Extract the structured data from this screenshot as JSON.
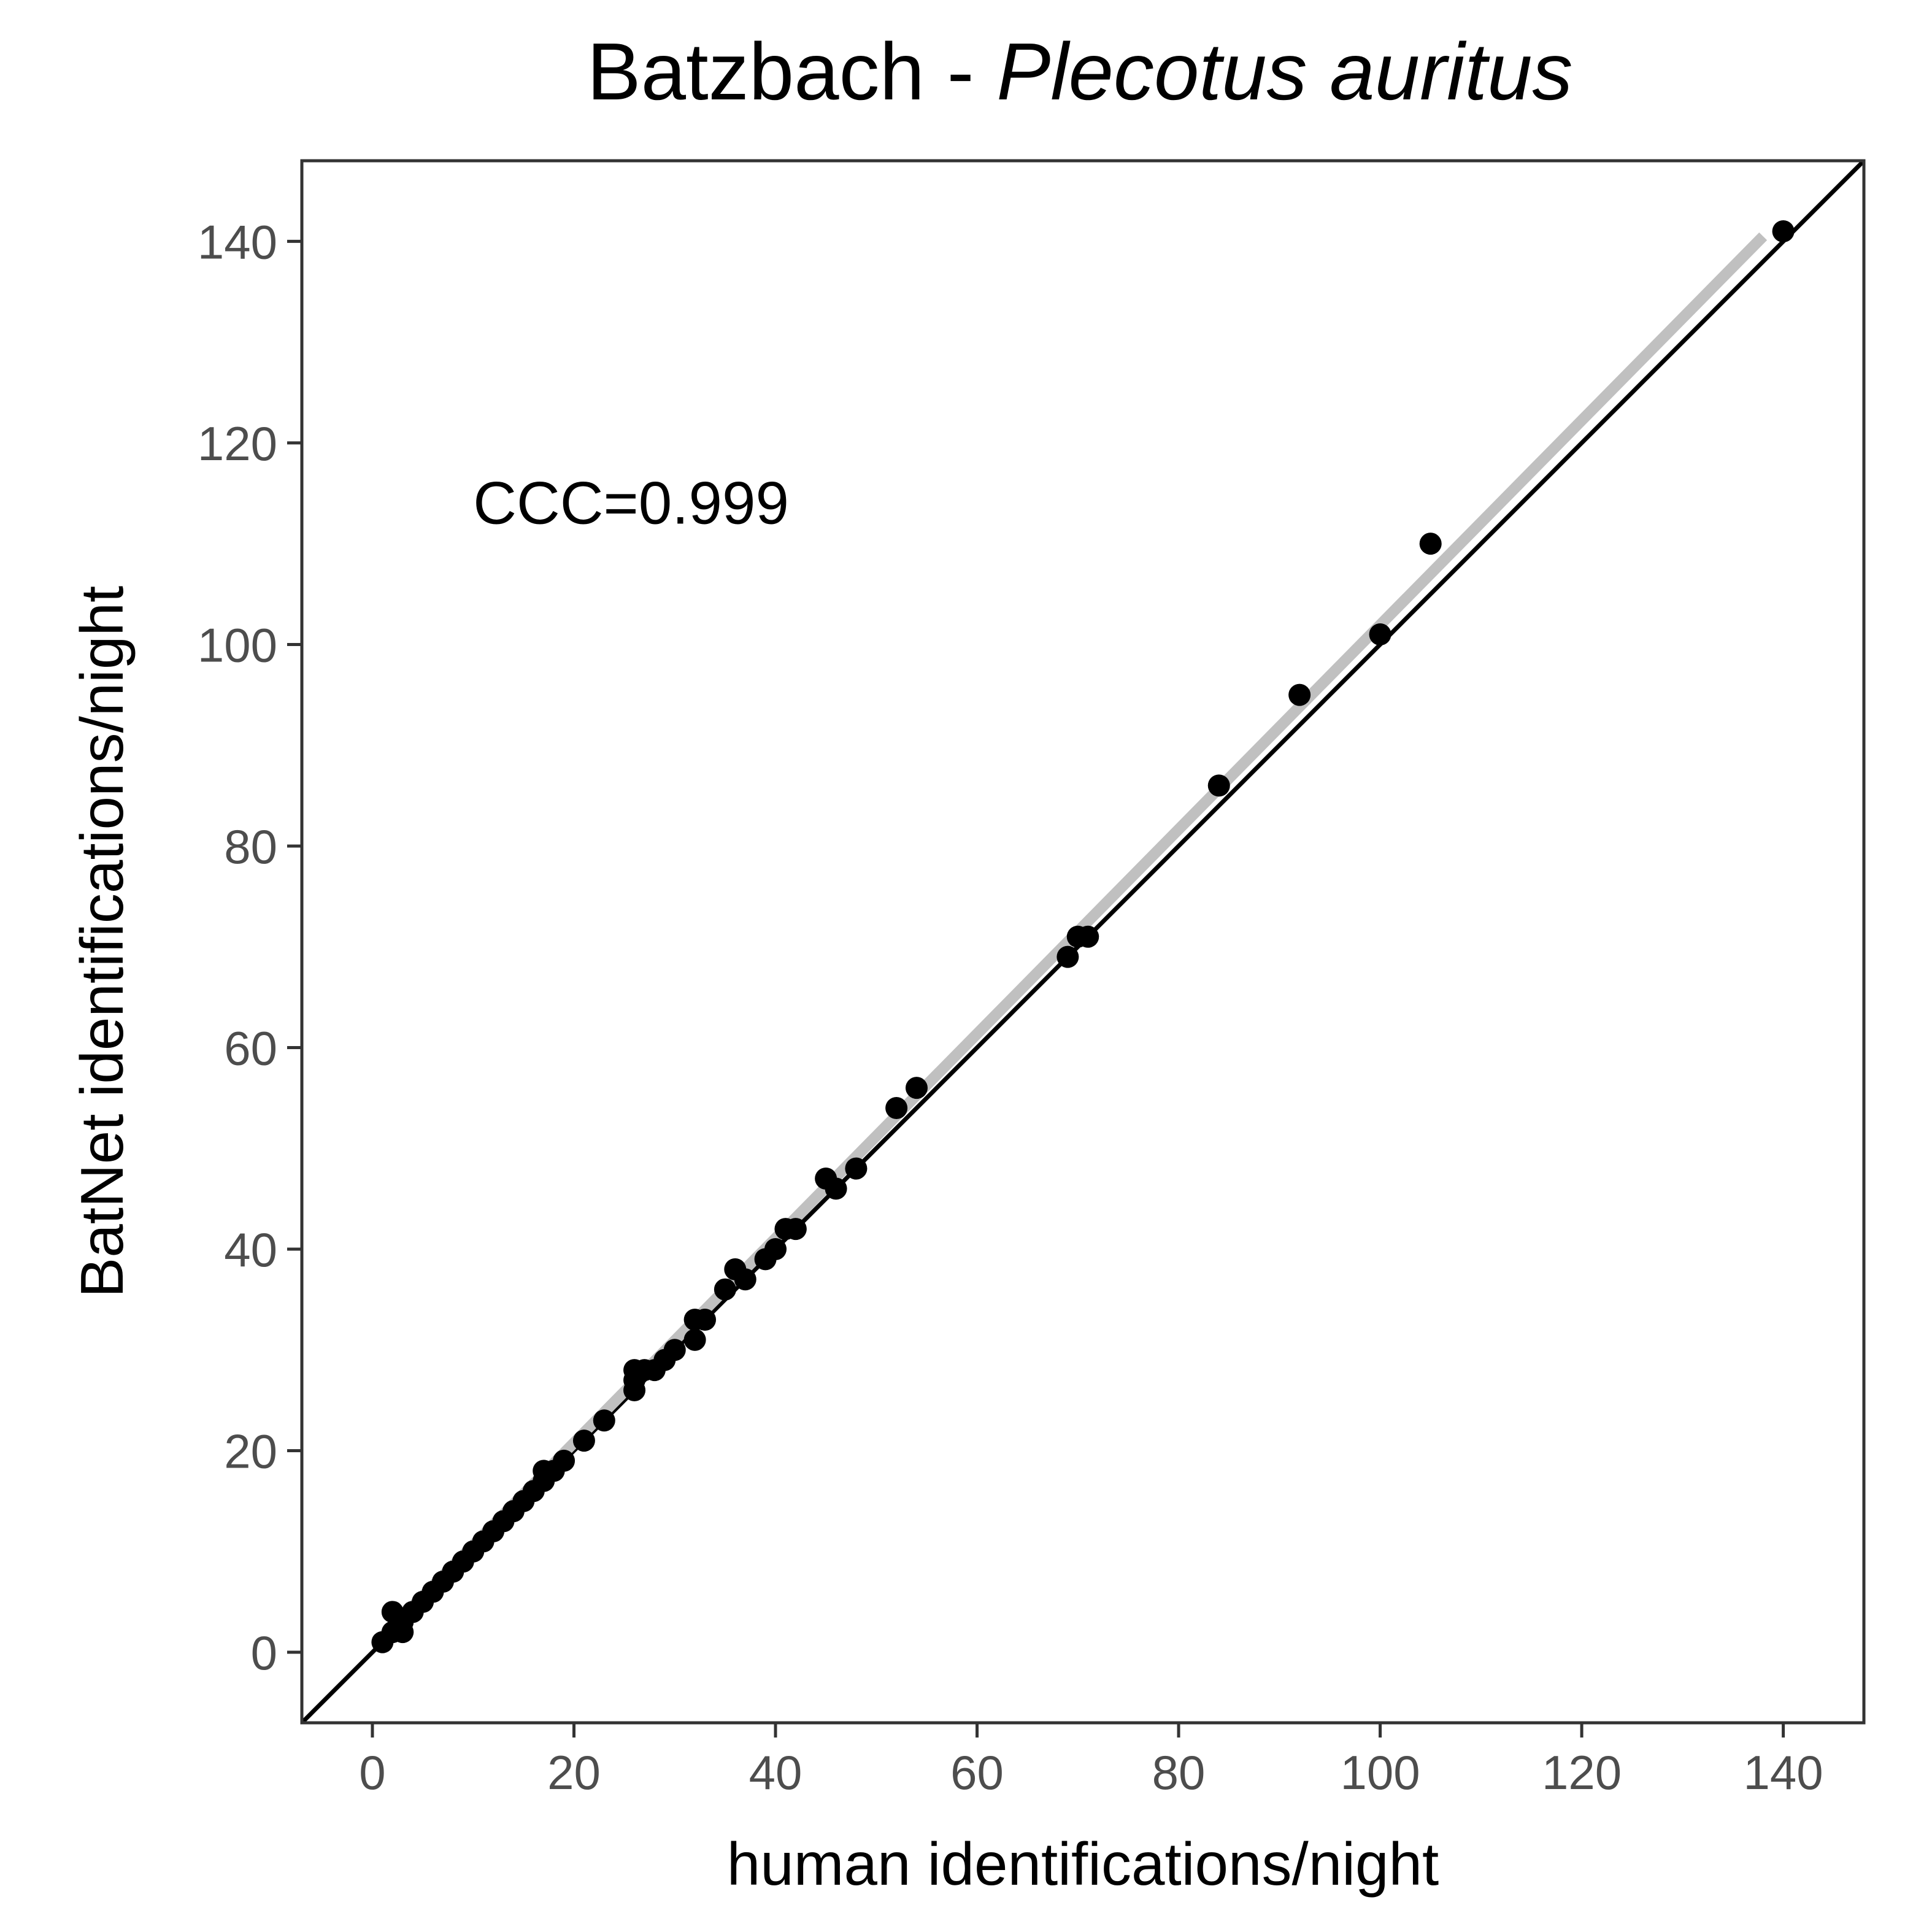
{
  "chart_data": {
    "type": "scatter",
    "title_main": "Batzbach - ",
    "title_species": "Plecotus auritus",
    "xlabel": "human identifications/night",
    "ylabel": "BatNet identifications/night",
    "xlim": [
      -7,
      148
    ],
    "ylim": [
      -7,
      148
    ],
    "x_ticks": [
      0,
      20,
      40,
      60,
      80,
      100,
      120,
      140
    ],
    "y_ticks": [
      0,
      20,
      40,
      60,
      80,
      100,
      120,
      140
    ],
    "x_tick_labels": [
      "0",
      "20",
      "40",
      "60",
      "80",
      "100",
      "120",
      "140"
    ],
    "y_tick_labels": [
      "0",
      "20",
      "40",
      "60",
      "80",
      "100",
      "120",
      "140"
    ],
    "grid": false,
    "annotation": {
      "text": "CCC=0.999",
      "x": 10,
      "y": 112
    },
    "identity_line": {
      "color": "#000000",
      "slope": 1,
      "intercept": 0
    },
    "fit_line": {
      "color": "#c0c0c0",
      "x": [
        1,
        138
      ],
      "y": [
        1.5,
        140.5
      ]
    },
    "point_color": "#000000",
    "points": [
      {
        "x": 1,
        "y": 1
      },
      {
        "x": 2,
        "y": 2
      },
      {
        "x": 2,
        "y": 4
      },
      {
        "x": 3,
        "y": 2
      },
      {
        "x": 3,
        "y": 3
      },
      {
        "x": 4,
        "y": 4
      },
      {
        "x": 5,
        "y": 5
      },
      {
        "x": 6,
        "y": 6
      },
      {
        "x": 7,
        "y": 7
      },
      {
        "x": 8,
        "y": 8
      },
      {
        "x": 9,
        "y": 9
      },
      {
        "x": 10,
        "y": 10
      },
      {
        "x": 11,
        "y": 11
      },
      {
        "x": 12,
        "y": 12
      },
      {
        "x": 13,
        "y": 13
      },
      {
        "x": 14,
        "y": 14
      },
      {
        "x": 15,
        "y": 15
      },
      {
        "x": 16,
        "y": 16
      },
      {
        "x": 17,
        "y": 17
      },
      {
        "x": 17,
        "y": 18
      },
      {
        "x": 18,
        "y": 18
      },
      {
        "x": 19,
        "y": 19
      },
      {
        "x": 21,
        "y": 21
      },
      {
        "x": 23,
        "y": 23
      },
      {
        "x": 26,
        "y": 26
      },
      {
        "x": 26,
        "y": 27
      },
      {
        "x": 26,
        "y": 28
      },
      {
        "x": 27,
        "y": 28
      },
      {
        "x": 28,
        "y": 28
      },
      {
        "x": 29,
        "y": 29
      },
      {
        "x": 30,
        "y": 30
      },
      {
        "x": 32,
        "y": 31
      },
      {
        "x": 32,
        "y": 33
      },
      {
        "x": 33,
        "y": 33
      },
      {
        "x": 35,
        "y": 36
      },
      {
        "x": 36,
        "y": 38
      },
      {
        "x": 37,
        "y": 37
      },
      {
        "x": 39,
        "y": 39
      },
      {
        "x": 40,
        "y": 40
      },
      {
        "x": 41,
        "y": 42
      },
      {
        "x": 42,
        "y": 42
      },
      {
        "x": 45,
        "y": 47
      },
      {
        "x": 46,
        "y": 46
      },
      {
        "x": 48,
        "y": 48
      },
      {
        "x": 52,
        "y": 54
      },
      {
        "x": 54,
        "y": 56
      },
      {
        "x": 69,
        "y": 69
      },
      {
        "x": 70,
        "y": 71
      },
      {
        "x": 71,
        "y": 71
      },
      {
        "x": 84,
        "y": 86
      },
      {
        "x": 92,
        "y": 95
      },
      {
        "x": 100,
        "y": 101
      },
      {
        "x": 105,
        "y": 110
      },
      {
        "x": 140,
        "y": 141
      }
    ]
  }
}
